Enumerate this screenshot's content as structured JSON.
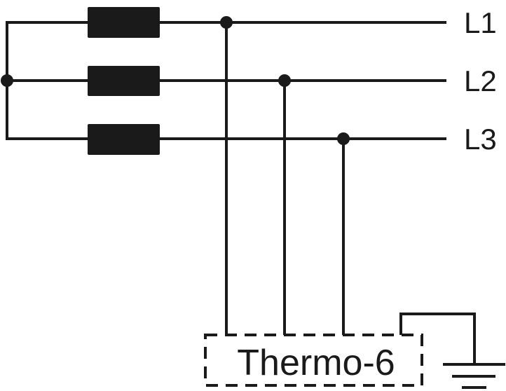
{
  "lines": [
    {
      "label": "L1"
    },
    {
      "label": "L2"
    },
    {
      "label": "L3"
    }
  ],
  "device": {
    "label": "Thermo-6"
  },
  "colors": {
    "stroke": "#1a1a1a",
    "background": "#ffffff"
  }
}
